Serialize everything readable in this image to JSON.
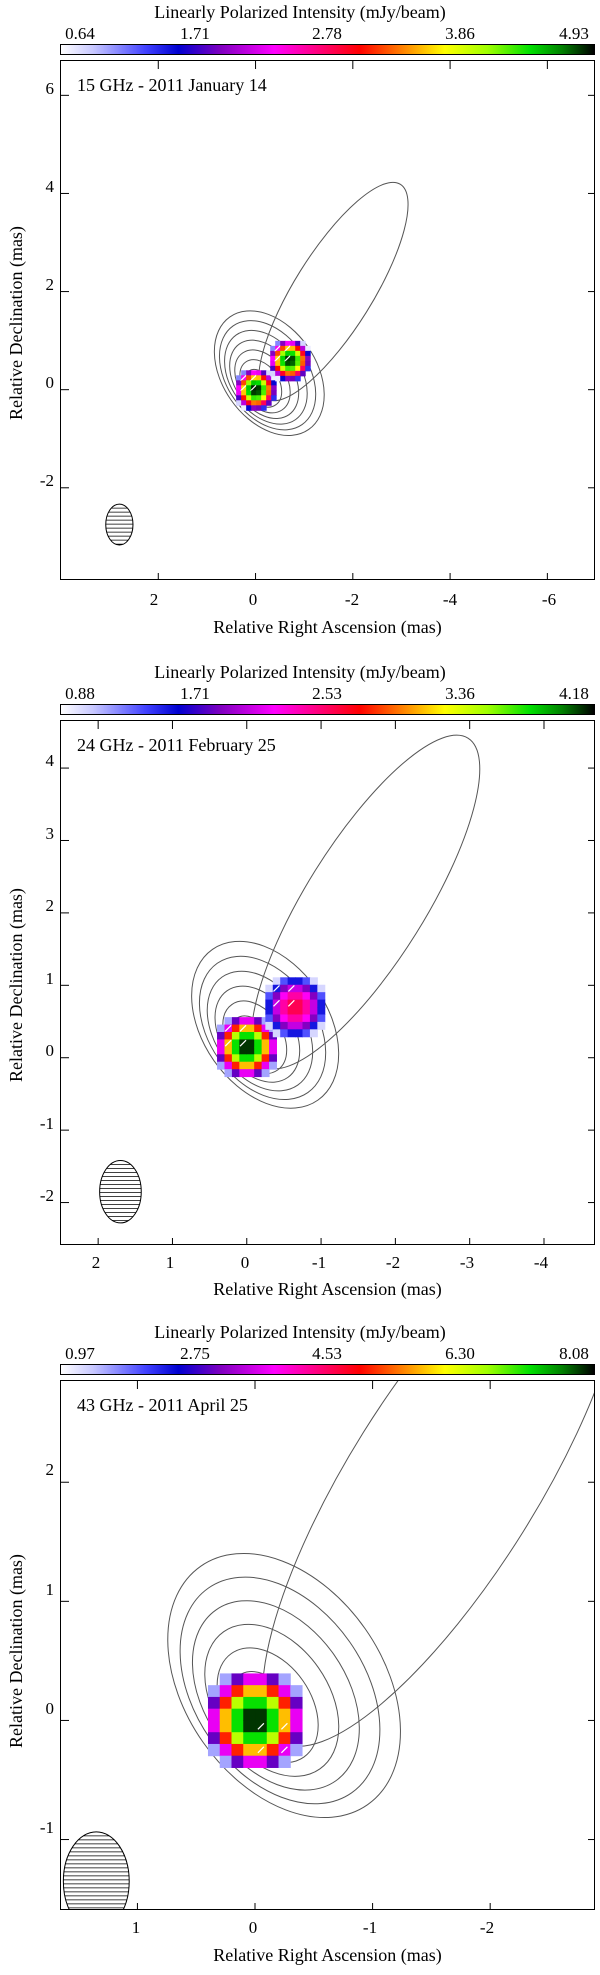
{
  "chart_data": [
    {
      "type": "heatmap",
      "title": "Linearly Polarized Intensity (mJy/beam)",
      "colorbar_ticks": [
        "0.64",
        "1.71",
        "2.78",
        "3.86",
        "4.93"
      ],
      "colorbar_range": [
        0.64,
        4.93
      ],
      "epoch_label": "15 GHz - 2011 January 14",
      "xlabel": "Relative Right Ascension (mas)",
      "ylabel": "Relative Declination (mas)",
      "x_ticks": [
        "2",
        "0",
        "-2",
        "-4",
        "-6"
      ],
      "y_ticks": [
        "6",
        "4",
        "2",
        "0",
        "-2"
      ],
      "xlim": [
        4.0,
        -7.0
      ],
      "ylim": [
        -3.9,
        6.7
      ],
      "polarized_components": [
        {
          "x": 0.0,
          "y": 0.0,
          "peak": 4.93
        },
        {
          "x": -0.7,
          "y": 0.6,
          "peak": 4.9
        }
      ],
      "contour_levels": 8,
      "beam": {
        "x": 2.8,
        "y": -2.75
      }
    },
    {
      "type": "heatmap",
      "title": "Linearly Polarized Intensity (mJy/beam)",
      "colorbar_ticks": [
        "0.88",
        "1.71",
        "2.53",
        "3.36",
        "4.18"
      ],
      "colorbar_range": [
        0.88,
        4.18
      ],
      "epoch_label": "24 GHz - 2011 February 25",
      "xlabel": "Relative Right Ascension (mas)",
      "ylabel": "Relative Declination (mas)",
      "x_ticks": [
        "2",
        "1",
        "0",
        "-1",
        "-2",
        "-3",
        "-4"
      ],
      "y_ticks": [
        "4",
        "3",
        "2",
        "1",
        "0",
        "-1",
        "-2"
      ],
      "xlim": [
        2.5,
        -4.7
      ],
      "ylim": [
        -2.6,
        4.65
      ],
      "polarized_components": [
        {
          "x": 0.0,
          "y": 0.15,
          "peak": 4.18
        },
        {
          "x": -0.65,
          "y": 0.7,
          "peak": 2.6
        }
      ],
      "contour_levels": 7,
      "beam": {
        "x": 1.7,
        "y": -1.85
      }
    },
    {
      "type": "heatmap",
      "title": "Linearly Polarized Intensity (mJy/beam)",
      "colorbar_ticks": [
        "0.97",
        "2.75",
        "4.53",
        "6.30",
        "8.08"
      ],
      "colorbar_range": [
        0.97,
        8.08
      ],
      "epoch_label": "43 GHz - 2011 April 25",
      "xlabel": "Relative Right Ascension (mas)",
      "ylabel": "Relative Declination (mas)",
      "x_ticks": [
        "1",
        "0",
        "-1",
        "-2"
      ],
      "y_ticks": [
        "2",
        "1",
        "0",
        "-1"
      ],
      "xlim": [
        1.65,
        -2.9
      ],
      "ylim": [
        -1.6,
        2.85
      ],
      "polarized_components": [
        {
          "x": 0.0,
          "y": 0.0,
          "peak": 8.08
        }
      ],
      "contour_levels": 7,
      "beam": {
        "x": 1.35,
        "y": -1.35
      }
    }
  ]
}
